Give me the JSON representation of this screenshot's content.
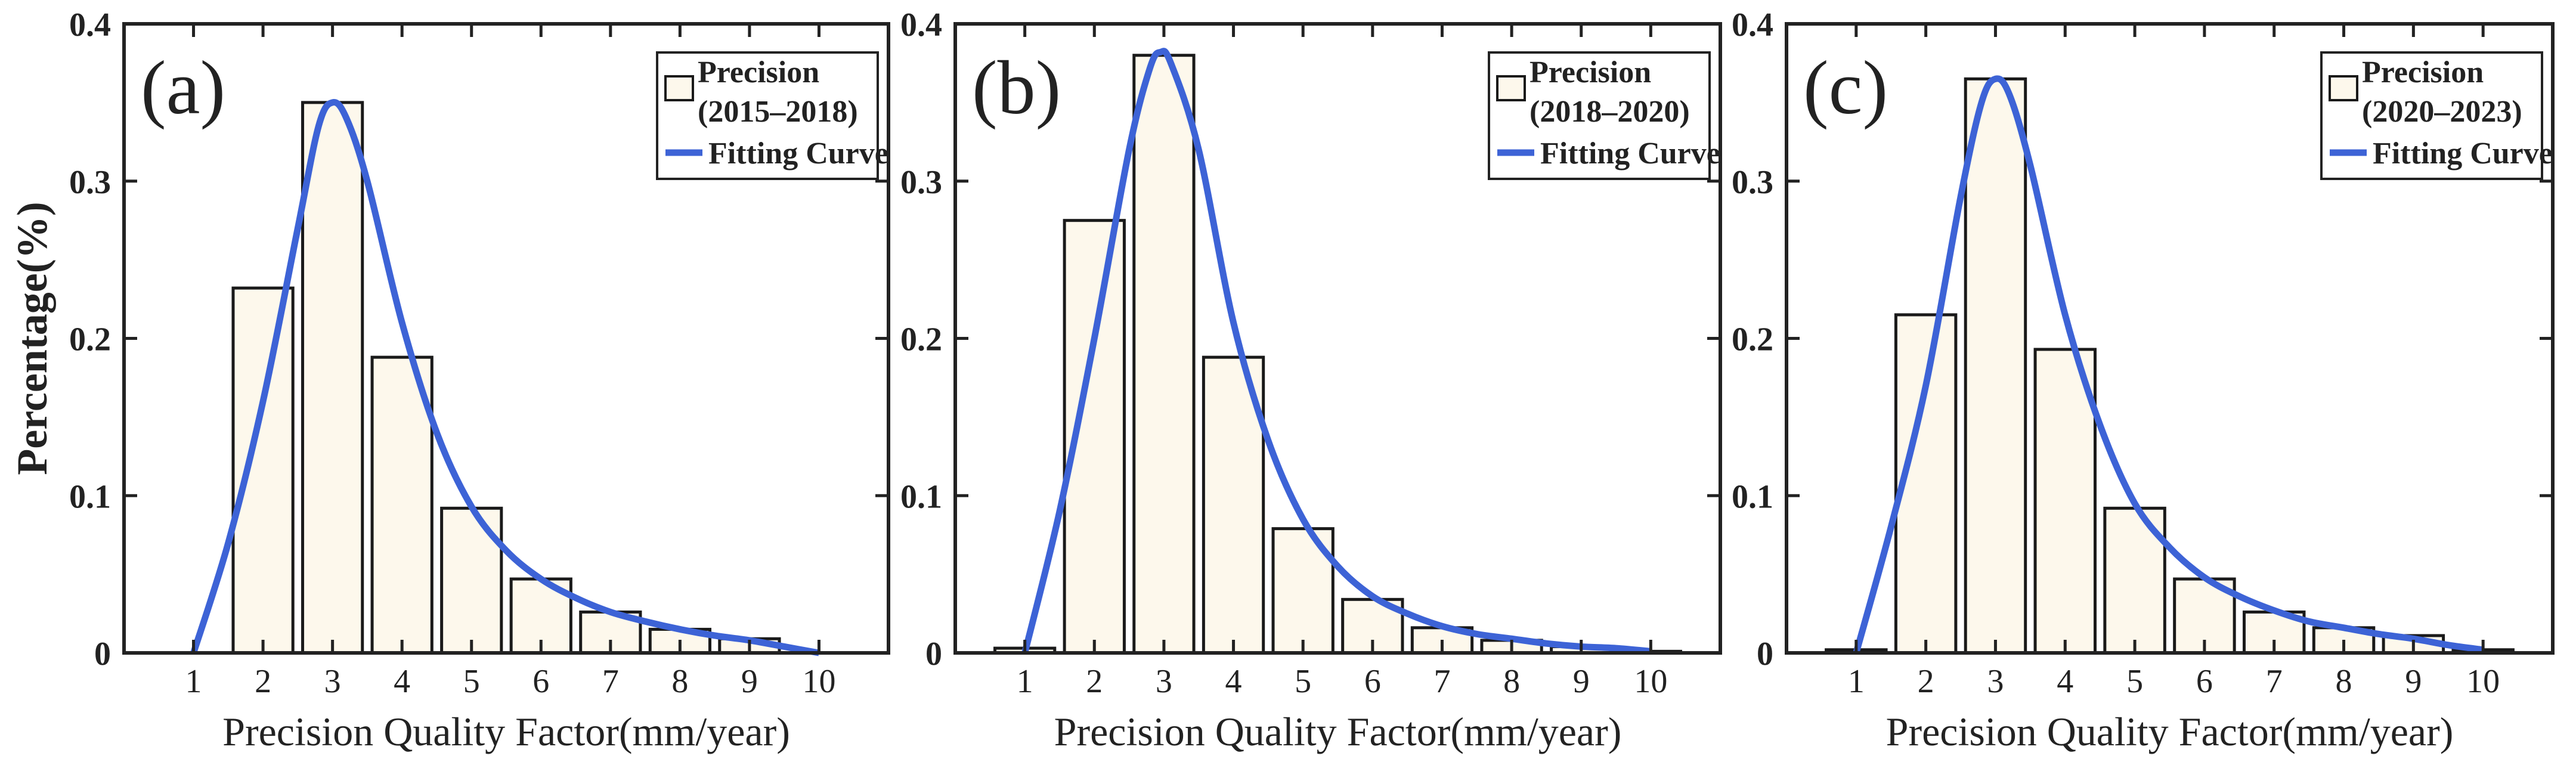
{
  "chart_data": [
    {
      "type": "bar",
      "panel_label": "(a)",
      "categories": [
        "1",
        "2",
        "3",
        "4",
        "5",
        "6",
        "7",
        "8",
        "9",
        "10"
      ],
      "values": [
        0,
        0.232,
        0.35,
        0.188,
        0.092,
        0.047,
        0.026,
        0.015,
        0.009,
        0
      ],
      "fit_curve": {
        "x": [
          1.0,
          1.5,
          2.0,
          2.5,
          2.8,
          3.0,
          3.2,
          3.5,
          4.0,
          4.5,
          5.0,
          5.5,
          6.0,
          6.5,
          7.0,
          7.5,
          8.0,
          8.5,
          9.0,
          9.5,
          10.0
        ],
        "y": [
          0,
          0.07,
          0.16,
          0.27,
          0.335,
          0.35,
          0.34,
          0.3,
          0.21,
          0.14,
          0.093,
          0.065,
          0.047,
          0.035,
          0.026,
          0.02,
          0.015,
          0.011,
          0.008,
          0.004,
          0
        ]
      },
      "legend": [
        "Precision",
        "(2015–2018)",
        "Fitting Curve"
      ],
      "xlabel": "Precision Quality Factor(mm/year)",
      "ylabel": "Percentage(%)",
      "xlim": [
        0,
        11
      ],
      "ylim": [
        0,
        0.4
      ],
      "yticks": [
        "0",
        "0.1",
        "0.2",
        "0.3",
        "0.4"
      ],
      "legend_position": "top-right"
    },
    {
      "type": "bar",
      "panel_label": "(b)",
      "categories": [
        "1",
        "2",
        "3",
        "4",
        "5",
        "6",
        "7",
        "8",
        "9",
        "10"
      ],
      "values": [
        0.003,
        0.275,
        0.38,
        0.188,
        0.079,
        0.034,
        0.016,
        0.008,
        0.004,
        0.001
      ],
      "fit_curve": {
        "x": [
          1.0,
          1.5,
          2.0,
          2.5,
          2.8,
          2.95,
          3.1,
          3.5,
          4.0,
          4.5,
          5.0,
          5.5,
          6.0,
          6.5,
          7.0,
          7.5,
          8.0,
          8.5,
          9.0,
          9.5,
          10.0
        ],
        "y": [
          0,
          0.09,
          0.2,
          0.32,
          0.372,
          0.382,
          0.375,
          0.32,
          0.21,
          0.135,
          0.085,
          0.055,
          0.036,
          0.025,
          0.017,
          0.012,
          0.009,
          0.006,
          0.004,
          0.003,
          0.001
        ]
      },
      "legend": [
        "Precision",
        "(2018–2020)",
        "Fitting Curve"
      ],
      "xlabel": "Precision Quality Factor(mm/year)",
      "ylabel": "",
      "xlim": [
        0,
        11
      ],
      "ylim": [
        0,
        0.4
      ],
      "yticks": [
        "0",
        "0.1",
        "0.2",
        "0.3",
        "0.4"
      ],
      "legend_position": "top-right"
    },
    {
      "type": "bar",
      "panel_label": "(c)",
      "categories": [
        "1",
        "2",
        "3",
        "4",
        "5",
        "6",
        "7",
        "8",
        "9",
        "10"
      ],
      "values": [
        0.002,
        0.215,
        0.365,
        0.193,
        0.092,
        0.047,
        0.026,
        0.016,
        0.011,
        0.002
      ],
      "fit_curve": {
        "x": [
          1.0,
          1.5,
          2.0,
          2.5,
          2.8,
          3.0,
          3.2,
          3.5,
          4.0,
          4.5,
          5.0,
          5.5,
          6.0,
          6.5,
          7.0,
          7.5,
          8.0,
          8.5,
          9.0,
          9.5,
          10.0
        ],
        "y": [
          0,
          0.08,
          0.17,
          0.29,
          0.35,
          0.365,
          0.355,
          0.31,
          0.215,
          0.145,
          0.095,
          0.067,
          0.048,
          0.036,
          0.027,
          0.02,
          0.016,
          0.012,
          0.009,
          0.005,
          0.002
        ]
      },
      "legend": [
        "Precision",
        "(2020–2023)",
        "Fitting Curve"
      ],
      "xlabel": "Precision Quality Factor(mm/year)",
      "ylabel": "",
      "xlim": [
        0,
        11
      ],
      "ylim": [
        0,
        0.4
      ],
      "yticks": [
        "0",
        "0.1",
        "0.2",
        "0.3",
        "0.4"
      ],
      "legend_position": "top-right"
    }
  ],
  "colors": {
    "bar_fill": "#fdf8ec",
    "bar_stroke": "#1a1a1a",
    "curve": "#3d63d6",
    "axis": "#222222"
  }
}
